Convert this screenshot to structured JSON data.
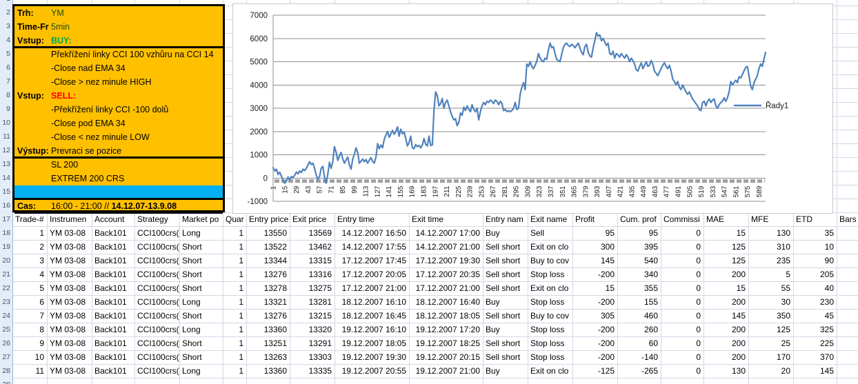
{
  "colors": {
    "info_box_bg": "#FFC000",
    "highlight_row_bg": "#00B0F0",
    "buy_green": "#00A64F",
    "sell_red": "#FF0000",
    "value_dark_green": "#1F4E0C",
    "series_blue": "#4F81BD",
    "chart_gridline": "#8C8C8C",
    "marker_dash_gray": "#A0A0A0",
    "sheet_gridline": "#D0D7E5"
  },
  "row_numbers": [
    "1",
    "2",
    "3",
    "4",
    "5",
    "6",
    "7",
    "8",
    "9",
    "10",
    "11",
    "12",
    "13",
    "14",
    "15",
    "16",
    "17",
    "18",
    "19",
    "20",
    "21",
    "22",
    "23",
    "24",
    "25",
    "26",
    "27",
    "28",
    "29"
  ],
  "info_box": {
    "rows": [
      {
        "label": "Trh:",
        "segments": [
          {
            "text": "YM",
            "style": "darkgreen"
          }
        ]
      },
      {
        "label": "Time-Fr",
        "segments": [
          {
            "text": "5min",
            "style": "darkgreen"
          }
        ]
      },
      {
        "label": "Vstup:",
        "segments": [
          {
            "text": "BUY:",
            "style": "greenbold"
          }
        ]
      },
      {
        "label": "",
        "segments": [
          {
            "text": "Překřížení linky CCI 100 vzhůru na CCI 14",
            "style": "plain"
          }
        ]
      },
      {
        "label": "",
        "segments": [
          {
            "text": "-Close nad EMA 34",
            "style": "plain"
          }
        ]
      },
      {
        "label": "",
        "segments": [
          {
            "text": "-Close > nez minule HIGH",
            "style": "plain"
          }
        ]
      },
      {
        "label": "Vstup:",
        "segments": [
          {
            "text": "SELL:",
            "style": "redbold"
          }
        ]
      },
      {
        "label": "",
        "segments": [
          {
            "text": "-Překřížení linky CCI -100 dolů",
            "style": "plain"
          }
        ]
      },
      {
        "label": "",
        "segments": [
          {
            "text": "-Close pod EMA 34",
            "style": "plain"
          }
        ]
      },
      {
        "label": "",
        "segments": [
          {
            "text": "-Close < nez minule LOW",
            "style": "plain"
          }
        ]
      },
      {
        "label": "Výstup:",
        "segments": [
          {
            "text": "Prevraci se pozice",
            "style": "plain"
          }
        ]
      },
      {
        "label": "",
        "segments": [
          {
            "text": "SL 200",
            "style": "plain"
          }
        ]
      },
      {
        "label": "",
        "segments": [
          {
            "text": "EXTREM 200 CRS",
            "style": "plain"
          }
        ]
      },
      {
        "label": "",
        "segments": [],
        "highlight": true
      },
      {
        "label": "Cas:",
        "segments": [
          {
            "text": "16:00 - 21:00 // ",
            "style": "plain"
          },
          {
            "text": "14.12.07-13.9.08",
            "style": "bold"
          }
        ]
      }
    ]
  },
  "chart_data": {
    "type": "line",
    "title": "",
    "xlabel": "",
    "ylabel": "",
    "ylim": [
      -1000,
      7000
    ],
    "y_ticks": [
      7000,
      6000,
      5000,
      4000,
      3000,
      2000,
      1000,
      0,
      -1000
    ],
    "x_tick_labels": [
      "1",
      "15",
      "29",
      "43",
      "57",
      "71",
      "85",
      "99",
      "113",
      "127",
      "141",
      "155",
      "169",
      "183",
      "197",
      "211",
      "225",
      "239",
      "253",
      "267",
      "281",
      "295",
      "309",
      "323",
      "337",
      "351",
      "365",
      "379",
      "393",
      "407",
      "421",
      "435",
      "449",
      "463",
      "477",
      "491",
      "505",
      "519",
      "533",
      "547",
      "561",
      "575",
      "589"
    ],
    "x_range": [
      1,
      597
    ],
    "grid": "horizontal",
    "legend_position": "right",
    "marker_line_value": -130,
    "series": [
      {
        "name": "Řady1",
        "color": "#4F81BD",
        "values": [
          450,
          300,
          380,
          150,
          250,
          80,
          -100,
          -220,
          -150,
          50,
          -80,
          60,
          20,
          120,
          260,
          180,
          300,
          240,
          380,
          320,
          420,
          560,
          700,
          580,
          640,
          420,
          120,
          -60,
          60,
          420,
          500,
          40,
          -220,
          180,
          680,
          420,
          700,
          1350,
          1100,
          760,
          950,
          1100,
          820,
          640,
          780,
          900,
          560,
          380,
          820,
          1020,
          1300,
          1100,
          640,
          720,
          820,
          700,
          800,
          640,
          760,
          880,
          720,
          640,
          900,
          1480,
          1260,
          1420,
          1300,
          1660,
          1850,
          2000,
          1750,
          1900,
          2050,
          1880,
          2000,
          2200,
          1800,
          2100,
          1900,
          1980,
          1700,
          1380,
          1520,
          1800,
          1300,
          1260,
          1440,
          1350,
          1400,
          1300,
          1420,
          1700,
          1450,
          1380,
          1800,
          1400,
          1420,
          2900,
          3700,
          3550,
          3100,
          3200,
          3420,
          3000,
          3250,
          3350,
          3100,
          2850,
          2650,
          2500,
          2550,
          2250,
          2400,
          2800,
          2700,
          3050,
          2900,
          3100,
          2950,
          2850,
          3150,
          2950,
          2850,
          3000,
          2500,
          2850,
          3100,
          3250,
          3150,
          3300,
          3250,
          3350,
          3300,
          3200,
          3350,
          3300,
          3150,
          3300,
          3200,
          2900,
          2950,
          2850,
          2900,
          2850,
          2900,
          3000,
          3250,
          2950,
          3000,
          3600,
          3900,
          4100,
          3800,
          4900,
          4800,
          5000,
          4800,
          4700,
          4850,
          5000,
          5350,
          5150,
          5050,
          5000,
          5150,
          5100,
          5500,
          5800,
          5600,
          5650,
          5350,
          5100,
          5050,
          5000,
          5300,
          5600,
          5750,
          5800,
          5700,
          5650,
          5750,
          5700,
          5600,
          5700,
          5800,
          5600,
          5400,
          5300,
          5650,
          5750,
          5400,
          5250,
          5200,
          5600,
          5900,
          6250,
          6100,
          6150,
          5900,
          6000,
          5850,
          5700,
          5800,
          5350,
          5300,
          5450,
          5150,
          5350,
          5300,
          5200,
          5350,
          5250,
          5150,
          5300,
          5200,
          5000,
          5150,
          5050,
          4900,
          4650,
          4600,
          4800,
          4950,
          4700,
          4850,
          5000,
          4800,
          4850,
          5050,
          4900,
          4600,
          4500,
          4400,
          4550,
          4700,
          4850,
          4950,
          4800,
          4700,
          4850,
          4600,
          4250,
          4150,
          4000,
          4150,
          3900,
          3800,
          4000,
          3850,
          3700,
          3600,
          3700,
          3550,
          3400,
          3300,
          3200,
          3100,
          2950,
          2900,
          3250,
          3300,
          3100,
          3300,
          3400,
          3250,
          3350,
          3400,
          3100,
          3000,
          3150,
          3250,
          3300,
          3450,
          3300,
          3450,
          3700,
          4150,
          4000,
          4100,
          4200,
          4100,
          4350,
          4300,
          4450,
          4600,
          4750,
          4800,
          4400,
          3950,
          3800,
          4100,
          4250,
          4400,
          4700,
          4900,
          4800,
          5100,
          5400
        ]
      }
    ]
  },
  "table": {
    "headers": [
      "Trade-#",
      "Instrumen",
      "Account",
      "Strategy",
      "Market po",
      "Quar",
      "Entry price",
      "Exit price",
      "Entry time",
      "Exit time",
      "Entry nam",
      "Exit name",
      "Profit",
      "Cum. prof",
      "Commissi",
      "MAE",
      "MFE",
      "ETD",
      "Bars"
    ],
    "rows": [
      [
        "1",
        "YM 03-08",
        "Back101",
        "CCI100crs(",
        "Long",
        "1",
        "13550",
        "13569",
        "14.12.2007 16:50",
        "14.12.2007 17:00",
        "Buy",
        "Sell",
        "95",
        "95",
        "0",
        "15",
        "130",
        "35",
        ""
      ],
      [
        "2",
        "YM 03-08",
        "Back101",
        "CCI100crs(",
        "Short",
        "1",
        "13522",
        "13462",
        "14.12.2007 17:55",
        "14.12.2007 21:00",
        "Sell short",
        "Exit on clo",
        "300",
        "395",
        "0",
        "125",
        "310",
        "10",
        ""
      ],
      [
        "3",
        "YM 03-08",
        "Back101",
        "CCI100crs(",
        "Short",
        "1",
        "13344",
        "13315",
        "17.12.2007 17:45",
        "17.12.2007 19:30",
        "Sell short",
        "Buy to cov",
        "145",
        "540",
        "0",
        "125",
        "235",
        "90",
        ""
      ],
      [
        "4",
        "YM 03-08",
        "Back101",
        "CCI100crs(",
        "Short",
        "1",
        "13276",
        "13316",
        "17.12.2007 20:05",
        "17.12.2007 20:35",
        "Sell short",
        "Stop loss",
        "-200",
        "340",
        "0",
        "200",
        "5",
        "205",
        ""
      ],
      [
        "5",
        "YM 03-08",
        "Back101",
        "CCI100crs(",
        "Short",
        "1",
        "13278",
        "13275",
        "17.12.2007 21:00",
        "17.12.2007 21:00",
        "Sell short",
        "Exit on clo",
        "15",
        "355",
        "0",
        "15",
        "55",
        "40",
        ""
      ],
      [
        "6",
        "YM 03-08",
        "Back101",
        "CCI100crs(",
        "Long",
        "1",
        "13321",
        "13281",
        "18.12.2007 16:10",
        "18.12.2007 16:40",
        "Buy",
        "Stop loss",
        "-200",
        "155",
        "0",
        "200",
        "30",
        "230",
        ""
      ],
      [
        "7",
        "YM 03-08",
        "Back101",
        "CCI100crs(",
        "Short",
        "1",
        "13276",
        "13215",
        "18.12.2007 16:45",
        "18.12.2007 18:05",
        "Sell short",
        "Buy to cov",
        "305",
        "460",
        "0",
        "145",
        "350",
        "45",
        ""
      ],
      [
        "8",
        "YM 03-08",
        "Back101",
        "CCI100crs(",
        "Long",
        "1",
        "13360",
        "13320",
        "19.12.2007 16:10",
        "19.12.2007 17:20",
        "Buy",
        "Stop loss",
        "-200",
        "260",
        "0",
        "200",
        "125",
        "325",
        ""
      ],
      [
        "9",
        "YM 03-08",
        "Back101",
        "CCI100crs(",
        "Short",
        "1",
        "13251",
        "13291",
        "19.12.2007 18:05",
        "19.12.2007 18:25",
        "Sell short",
        "Stop loss",
        "-200",
        "60",
        "0",
        "200",
        "25",
        "225",
        ""
      ],
      [
        "10",
        "YM 03-08",
        "Back101",
        "CCI100crs(",
        "Short",
        "1",
        "13263",
        "13303",
        "19.12.2007 19:30",
        "19.12.2007 20:15",
        "Sell short",
        "Stop loss",
        "-200",
        "-140",
        "0",
        "200",
        "170",
        "370",
        ""
      ],
      [
        "11",
        "YM 03-08",
        "Back101",
        "CCI100crs(",
        "Long",
        "1",
        "13360",
        "13335",
        "19.12.2007 20:55",
        "19.12.2007 21:00",
        "Buy",
        "Exit on clo",
        "-125",
        "-265",
        "0",
        "130",
        "20",
        "145",
        ""
      ]
    ]
  }
}
